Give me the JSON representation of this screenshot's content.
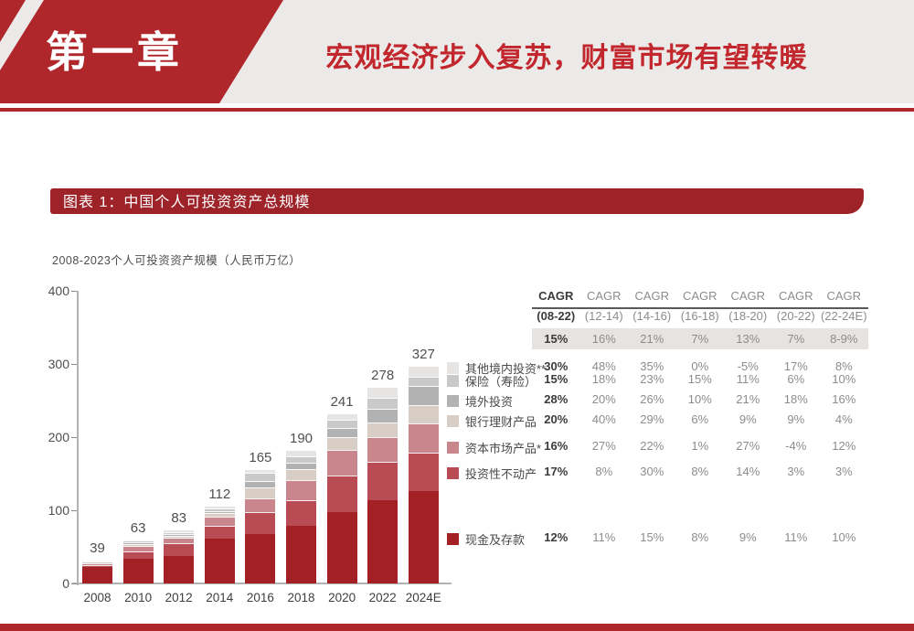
{
  "page": {
    "chapter": "第一章",
    "title": "宏观经济步入复苏，财富市场有望转暖",
    "figure_banner": "图表 1：中国个人可投资资产总规模",
    "figure_subtitle": "2008-2023个人可投资资产规模（人民币万亿）"
  },
  "chart_data": {
    "type": "bar",
    "stacked": true,
    "title": "2008-2023个人可投资资产规模（人民币万亿）",
    "categories": [
      "2008",
      "2010",
      "2012",
      "2014",
      "2016",
      "2018",
      "2020",
      "2022",
      "2024E"
    ],
    "totals_labels": [
      "39",
      "63",
      "83",
      "112",
      "165",
      "190",
      "241",
      "278",
      "327"
    ],
    "ylim": [
      0,
      400
    ],
    "yticks": [
      0,
      100,
      200,
      300,
      400
    ],
    "grid": false,
    "legend_position": "right",
    "series_bottom_to_top": [
      {
        "name": "现金及存款",
        "color": "#A32125",
        "values": [
          22.0,
          34.2,
          37.1,
          60.8,
          67.1,
          78.8,
          97.5,
          114.1,
          126.6
        ]
      },
      {
        "name": "投资性不动产",
        "color": "#B84B53",
        "values": [
          3.0,
          10.0,
          17.5,
          17.5,
          30.7,
          35.4,
          50.0,
          52.1,
          52.2
        ]
      },
      {
        "name": "资本市场产品*",
        "color": "#C9868D",
        "values": [
          2.5,
          6.7,
          7.5,
          13.3,
          18.4,
          27.1,
          35.4,
          33.3,
          39.6
        ]
      },
      {
        "name": "银行理财产品",
        "color": "#D8CEC6",
        "values": [
          2.0,
          2.9,
          2.9,
          4.2,
          15.4,
          14.7,
          16.7,
          20.8,
          25.7
        ]
      },
      {
        "name": "境外投资",
        "color": "#B2B2B2",
        "values": [
          1.0,
          2.9,
          2.5,
          3.3,
          8.8,
          9.1,
          13.3,
          18.8,
          26.3
        ]
      },
      {
        "name": "保险（寿险）",
        "color": "#C9C9C9",
        "values": [
          1.0,
          1.8,
          2.5,
          3.3,
          10.5,
          8.7,
          10.9,
          14.6,
          12.5
        ]
      },
      {
        "name": "其他境内投资**",
        "color": "#E6E5E4",
        "values": [
          0.6,
          1.5,
          3.3,
          3.3,
          5.7,
          9.1,
          9.1,
          14.6,
          14.6
        ]
      }
    ]
  },
  "table": {
    "header_row1": [
      "CAGR",
      "CAGR",
      "CAGR",
      "CAGR",
      "CAGR",
      "CAGR",
      "CAGR"
    ],
    "header_row2": [
      "(08-22)",
      "(12-14)",
      "(14-16)",
      "(16-18)",
      "(18-20)",
      "(20-22)",
      "(22-24E)"
    ],
    "total_row": [
      "15%",
      "16%",
      "21%",
      "7%",
      "13%",
      "7%",
      "8-9%"
    ],
    "rows": [
      {
        "label": "其他境内投资**",
        "color": "#E6E5E4",
        "values": [
          "30%",
          "48%",
          "35%",
          "0%",
          "-5%",
          "17%",
          "8%"
        ]
      },
      {
        "label": "保险（寿险）",
        "color": "#C9C9C9",
        "values": [
          "15%",
          "18%",
          "23%",
          "15%",
          "11%",
          "6%",
          "10%"
        ]
      },
      {
        "label": "境外投资",
        "color": "#B2B2B2",
        "values": [
          "28%",
          "20%",
          "26%",
          "10%",
          "21%",
          "18%",
          "16%"
        ]
      },
      {
        "label": "银行理财产品",
        "color": "#D8CEC6",
        "values": [
          "20%",
          "40%",
          "29%",
          "6%",
          "9%",
          "9%",
          "4%"
        ]
      },
      {
        "label": "资本市场产品*",
        "color": "#C9868D",
        "values": [
          "16%",
          "27%",
          "22%",
          "1%",
          "27%",
          "-4%",
          "12%"
        ]
      },
      {
        "label": "投资性不动产",
        "color": "#B84B53",
        "values": [
          "17%",
          "8%",
          "30%",
          "8%",
          "14%",
          "3%",
          "3%"
        ]
      },
      {
        "label": "现金及存款",
        "color": "#A32125",
        "values": [
          "12%",
          "11%",
          "15%",
          "8%",
          "9%",
          "11%",
          "10%"
        ]
      }
    ]
  },
  "colors": {
    "accent_red": "#AF262B",
    "title_red": "#C1272D",
    "banner_red": "#9D2328",
    "header_bg": "#ECEAE8",
    "highlight_row_bg": "#E7E3E0"
  }
}
